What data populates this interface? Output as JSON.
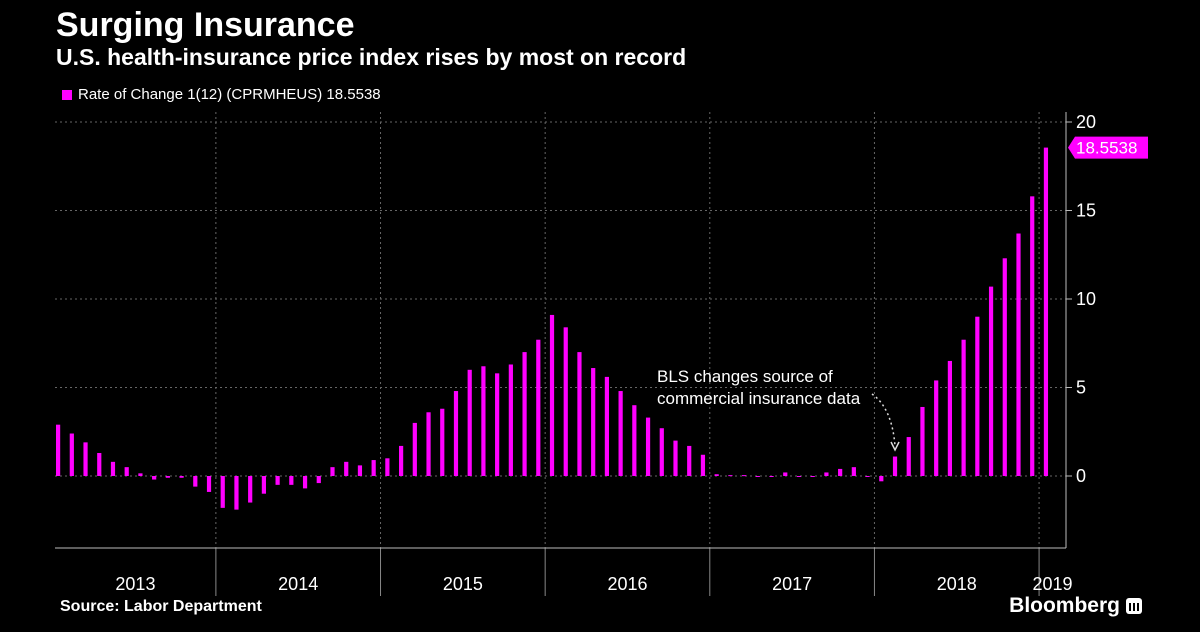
{
  "header": {
    "title": "Surging Insurance",
    "subtitle": "U.S. health-insurance price index rises by most on record"
  },
  "legend": {
    "label": "Rate of Change 1(12) (CPRMHEUS) 18.5538"
  },
  "footer": {
    "source": "Source: Labor Department",
    "brand": "Bloomberg"
  },
  "colors": {
    "series": "#ff00ff",
    "background": "#000000",
    "grid": "#666666",
    "text": "#ffffff"
  },
  "chart_data": {
    "type": "bar",
    "ylim": [
      -4,
      20
    ],
    "yticks": [
      0,
      5,
      10,
      15,
      20
    ],
    "grid": true,
    "legend_position": "top-left",
    "year_labels": [
      "2013",
      "2014",
      "2015",
      "2016",
      "2017",
      "2018",
      "2019"
    ],
    "last_value_label": "18.5538",
    "annotation": {
      "lines": [
        "BLS changes source of",
        "commercial insurance data"
      ]
    },
    "series": [
      {
        "name": "Rate of Change 1(12) (CPRMHEUS)",
        "start": "2013-01",
        "values": [
          2.9,
          2.4,
          1.9,
          1.3,
          0.8,
          0.5,
          0.15,
          -0.2,
          -0.1,
          -0.1,
          -0.6,
          -0.9,
          -1.8,
          -1.9,
          -1.5,
          -1.0,
          -0.5,
          -0.5,
          -0.7,
          -0.4,
          0.5,
          0.8,
          0.6,
          0.9,
          1.0,
          1.7,
          3.0,
          3.6,
          3.8,
          4.8,
          6.0,
          6.2,
          5.8,
          6.3,
          7.0,
          7.7,
          9.1,
          8.4,
          7.0,
          6.1,
          5.6,
          4.8,
          4.0,
          3.3,
          2.7,
          2.0,
          1.7,
          1.2,
          0.1,
          0.05,
          0.05,
          0.0,
          0.0,
          0.2,
          -0.05,
          0.0,
          0.2,
          0.4,
          0.5,
          0.0,
          -0.3,
          1.1,
          2.2,
          3.9,
          5.4,
          6.5,
          7.7,
          9.0,
          10.7,
          12.3,
          13.7,
          15.8,
          18.5538
        ]
      }
    ]
  }
}
